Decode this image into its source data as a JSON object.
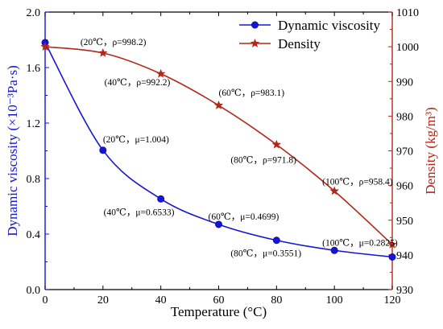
{
  "chart_data": {
    "type": "line",
    "xlabel": "Temperature (°C)",
    "ylabel_left": "Dynamic viscosity (×10⁻³Pa·s)",
    "ylabel_right": "Density (kg/m³)",
    "xlim": [
      0,
      120
    ],
    "ylim_left": [
      0.0,
      2.0
    ],
    "ylim_right": [
      930,
      1010
    ],
    "x_ticks": [
      "0",
      "20",
      "40",
      "60",
      "80",
      "100",
      "120"
    ],
    "y_left_ticks": [
      "0.0",
      "0.4",
      "0.8",
      "1.2",
      "1.6",
      "2.0"
    ],
    "y_right_ticks": [
      "930",
      "940",
      "950",
      "960",
      "970",
      "980",
      "990",
      "1000",
      "1010"
    ],
    "legend_position": "top-right",
    "series": [
      {
        "name": "Dynamic viscosity",
        "axis": "left",
        "color": "#1515d6",
        "marker": "circle",
        "x": [
          0,
          20,
          40,
          60,
          80,
          100,
          120
        ],
        "values": [
          1.78,
          1.004,
          0.6533,
          0.4699,
          0.3551,
          0.2825,
          0.235
        ]
      },
      {
        "name": "Density",
        "axis": "right",
        "color": "#b0281a",
        "marker": "star",
        "x": [
          0,
          20,
          40,
          60,
          80,
          100,
          120
        ],
        "values": [
          1000,
          998.2,
          992.2,
          983.1,
          971.8,
          958.4,
          943
        ]
      }
    ],
    "annotations": [
      {
        "text": "(20℃，ρ=998.2)",
        "x": 20,
        "y": 998.2,
        "axis": "right"
      },
      {
        "text": "(40℃，ρ=992.2)",
        "x": 40,
        "y": 992.2,
        "axis": "right"
      },
      {
        "text": "(60℃，ρ=983.1)",
        "x": 60,
        "y": 983.1,
        "axis": "right"
      },
      {
        "text": "(80℃，ρ=971.8)",
        "x": 80,
        "y": 971.8,
        "axis": "right"
      },
      {
        "text": "(100℃，ρ=958.4)",
        "x": 100,
        "y": 958.4,
        "axis": "right"
      },
      {
        "text": "(20℃，μ=1.004)",
        "x": 20,
        "y": 1.004,
        "axis": "left"
      },
      {
        "text": "(40℃，μ=0.6533)",
        "x": 40,
        "y": 0.6533,
        "axis": "left"
      },
      {
        "text": "(60℃，μ=0.4699)",
        "x": 60,
        "y": 0.4699,
        "axis": "left"
      },
      {
        "text": "(80℃，μ=0.3551)",
        "x": 80,
        "y": 0.3551,
        "axis": "left"
      },
      {
        "text": "(100℃，μ=0.2825)",
        "x": 100,
        "y": 0.2825,
        "axis": "left"
      }
    ]
  }
}
